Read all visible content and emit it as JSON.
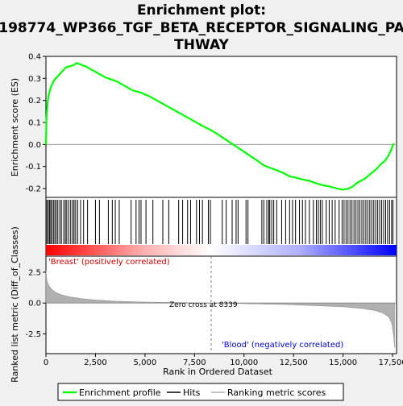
{
  "title_lines": [
    "Enrichment plot:",
    "198774_WP366_TGF_BETA_RECEPTOR_SIGNALING_PA",
    "THWAY"
  ],
  "colors": {
    "profile": "#00ff00",
    "hits": "#000000",
    "metric_fill": "#b0b0b0",
    "positive_label": "#cc0000",
    "negative_label": "#0000cc",
    "zero_line": "#808080"
  },
  "chart_data": [
    {
      "type": "line",
      "name": "enrichment-score",
      "ylabel": "Enrichment score (ES)",
      "xlim": [
        0,
        17700
      ],
      "ylim": [
        -0.24,
        0.4
      ],
      "yticks": [
        0.4,
        0.3,
        0.2,
        0.1,
        0.0,
        -0.1,
        -0.2
      ],
      "ytick_labels": [
        "0.4",
        "0.3",
        "0.2",
        "0.1",
        "0.0",
        "-0.1",
        "-0.2"
      ],
      "x": [
        0,
        30,
        80,
        150,
        250,
        400,
        600,
        800,
        1000,
        1200,
        1400,
        1550,
        1700,
        2000,
        2300,
        2600,
        3000,
        3300,
        3600,
        4000,
        4400,
        4800,
        5200,
        5600,
        6000,
        6500,
        7000,
        7500,
        8000,
        8339,
        8700,
        9200,
        9700,
        10200,
        10700,
        11000,
        11300,
        11600,
        12000,
        12300,
        12600,
        13000,
        13300,
        13600,
        14000,
        14300,
        14700,
        15000,
        15300,
        15500,
        15700,
        15900,
        16100,
        16300,
        16500,
        16700,
        16900,
        17100,
        17300,
        17450,
        17550
      ],
      "y": [
        0.0,
        0.12,
        0.19,
        0.23,
        0.26,
        0.29,
        0.31,
        0.33,
        0.35,
        0.355,
        0.36,
        0.37,
        0.365,
        0.355,
        0.34,
        0.325,
        0.305,
        0.295,
        0.285,
        0.265,
        0.245,
        0.235,
        0.22,
        0.2,
        0.18,
        0.155,
        0.13,
        0.105,
        0.08,
        0.065,
        0.045,
        0.015,
        -0.015,
        -0.045,
        -0.075,
        -0.095,
        -0.105,
        -0.115,
        -0.13,
        -0.145,
        -0.15,
        -0.16,
        -0.165,
        -0.175,
        -0.185,
        -0.19,
        -0.2,
        -0.205,
        -0.2,
        -0.19,
        -0.175,
        -0.165,
        -0.155,
        -0.14,
        -0.125,
        -0.11,
        -0.09,
        -0.075,
        -0.05,
        -0.02,
        0.005
      ]
    },
    {
      "type": "hits",
      "name": "hits",
      "positions": [
        50,
        120,
        180,
        240,
        300,
        380,
        450,
        520,
        600,
        700,
        780,
        900,
        980,
        1050,
        1150,
        1250,
        1350,
        1420,
        1500,
        1600,
        1750,
        1900,
        2100,
        2500,
        2700,
        3150,
        3350,
        3500,
        3700,
        4300,
        4550,
        4700,
        4800,
        5050,
        5400,
        5900,
        6200,
        6700,
        6900,
        7150,
        7300,
        7600,
        7750,
        7900,
        8200,
        8300,
        8900,
        9100,
        9400,
        9600,
        9700,
        10100,
        10200,
        10900,
        11000,
        11150,
        11250,
        11300,
        11400,
        11500,
        11650,
        11900,
        12100,
        12300,
        12450,
        12600,
        12800,
        12950,
        13100,
        13300,
        13500,
        13650,
        13750,
        13850,
        13950,
        14150,
        14300,
        14450,
        14600,
        14800,
        14950,
        15050,
        15150,
        15250,
        15350,
        15450,
        15550,
        15650,
        15750,
        15850,
        15950,
        16050,
        16150,
        16250,
        16350,
        16450,
        16550,
        16650,
        16750,
        16850,
        16950,
        17050,
        17150,
        17250,
        17350,
        17450,
        17520
      ]
    },
    {
      "type": "area",
      "name": "ranked-metric",
      "ylabel": "Ranked list metric (Diff_of_Classes)",
      "xlabel": "Rank in Ordered Dataset",
      "xlim": [
        0,
        17700
      ],
      "ylim": [
        -4.1,
        3.8
      ],
      "yticks": [
        2.5,
        0.0,
        -2.5
      ],
      "ytick_labels": [
        "2.5",
        "0.0",
        "-2.5"
      ],
      "xticks": [
        0,
        2500,
        5000,
        7500,
        10000,
        12500,
        15000,
        17500
      ],
      "xtick_labels": [
        "0",
        "2,500",
        "5,000",
        "7,500",
        "10,000",
        "12,500",
        "15,000",
        "17,500"
      ],
      "x": [
        0,
        50,
        150,
        300,
        500,
        800,
        1200,
        1800,
        2500,
        3500,
        5000,
        6500,
        8339,
        10000,
        12000,
        13500,
        15000,
        16000,
        16600,
        17000,
        17300,
        17450,
        17550,
        17600
      ],
      "y": [
        2.6,
        1.8,
        1.4,
        1.1,
        0.85,
        0.65,
        0.5,
        0.35,
        0.25,
        0.15,
        0.08,
        0.04,
        0.0,
        -0.05,
        -0.12,
        -0.2,
        -0.3,
        -0.45,
        -0.6,
        -0.8,
        -1.1,
        -1.6,
        -2.6,
        -3.6
      ],
      "annotations": {
        "zero_cross": "Zero cross at 8339",
        "zero_cross_rank": 8339,
        "positive": "'Breast' (positively correlated)",
        "negative": "'Blood' (negatively correlated)"
      }
    }
  ],
  "legend": {
    "items": [
      "Enrichment profile",
      "Hits",
      "Ranking metric scores"
    ]
  }
}
